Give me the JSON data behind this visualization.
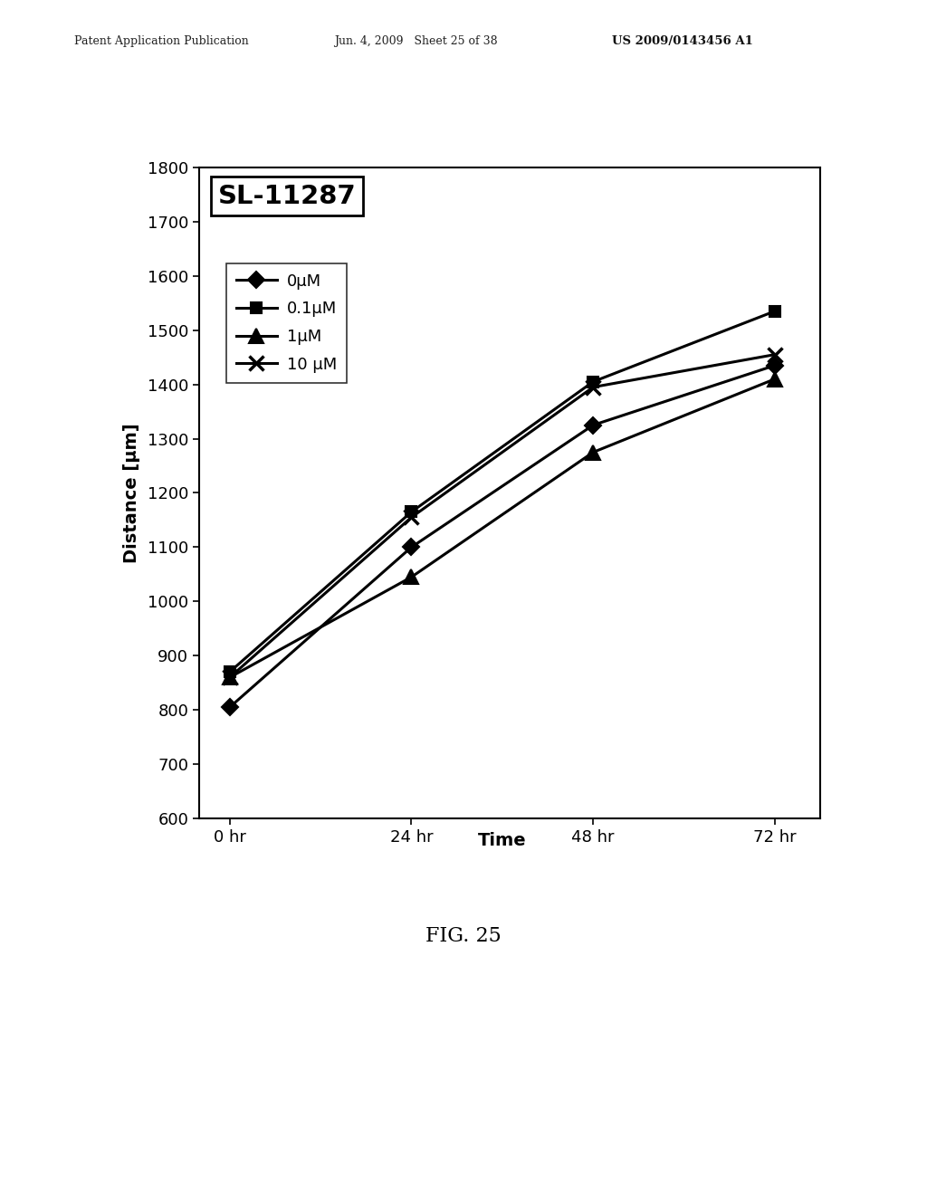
{
  "title": "SL-11287",
  "xlabel_text": "Time",
  "ylabel_text": "Distance [μm]",
  "x_values": [
    0,
    24,
    48,
    72
  ],
  "x_labels": [
    "0 hr",
    "24 hr",
    "48 hr",
    "72 hr"
  ],
  "series": [
    {
      "label": "0μM",
      "values": [
        805,
        1100,
        1325,
        1435
      ],
      "marker": "D",
      "color": "#000000"
    },
    {
      "label": "0.1μM",
      "values": [
        870,
        1165,
        1405,
        1535
      ],
      "marker": "s",
      "color": "#000000"
    },
    {
      "label": "1μM",
      "values": [
        860,
        1045,
        1275,
        1410
      ],
      "marker": "^",
      "color": "#000000"
    },
    {
      "label": "10 μM",
      "values": [
        860,
        1155,
        1395,
        1455
      ],
      "marker": "x",
      "color": "#000000"
    }
  ],
  "ylim": [
    600,
    1800
  ],
  "yticks": [
    600,
    700,
    800,
    900,
    1000,
    1100,
    1200,
    1300,
    1400,
    1500,
    1600,
    1700,
    1800
  ],
  "background_color": "#ffffff",
  "fig_caption": "FIG. 25",
  "header_left": "Patent Application Publication",
  "header_mid": "Jun. 4, 2009   Sheet 25 of 38",
  "header_right": "US 2009/0143456 A1"
}
